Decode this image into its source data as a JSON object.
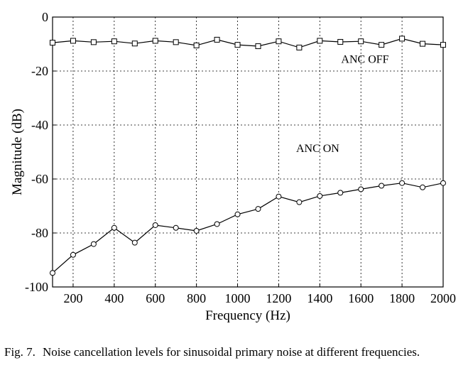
{
  "chart_data": {
    "type": "line",
    "title": "",
    "xlabel": "Frequency (Hz)",
    "ylabel": "Magnitude (dB)",
    "xlim": [
      100,
      2000
    ],
    "ylim": [
      -100,
      0
    ],
    "xticks": [
      200,
      400,
      600,
      800,
      1000,
      1200,
      1400,
      1600,
      1800,
      2000
    ],
    "yticks": [
      0,
      -20,
      -40,
      -60,
      -80,
      -100
    ],
    "grid": true,
    "x": [
      100,
      200,
      300,
      400,
      500,
      600,
      700,
      800,
      900,
      1000,
      1100,
      1200,
      1300,
      1400,
      1500,
      1600,
      1700,
      1800,
      1900,
      2000
    ],
    "series": [
      {
        "name": "ANC OFF",
        "marker": "square",
        "values": [
          -9.5,
          -8.8,
          -9.3,
          -9.0,
          -9.8,
          -8.8,
          -9.3,
          -10.5,
          -8.4,
          -10.3,
          -10.8,
          -9.0,
          -11.3,
          -8.8,
          -9.2,
          -9.0,
          -10.3,
          -8.0,
          -9.9,
          -10.3
        ]
      },
      {
        "name": "ANC ON",
        "marker": "circle",
        "values": [
          -94.8,
          -88.1,
          -84.1,
          -78.1,
          -83.6,
          -77.1,
          -78.1,
          -79.2,
          -76.7,
          -73.1,
          -71.1,
          -66.5,
          -68.6,
          -66.3,
          -65.1,
          -63.8,
          -62.5,
          -61.5,
          -63.1,
          -61.5
        ]
      }
    ],
    "annotations": [
      {
        "text": "ANC OFF",
        "x": 1620,
        "y": -17
      },
      {
        "text": "ANC ON",
        "x": 1390,
        "y": -50
      }
    ]
  },
  "caption": {
    "label": "Fig. 7.",
    "text": "Noise cancellation levels for sinusoidal primary noise at different frequencies."
  }
}
